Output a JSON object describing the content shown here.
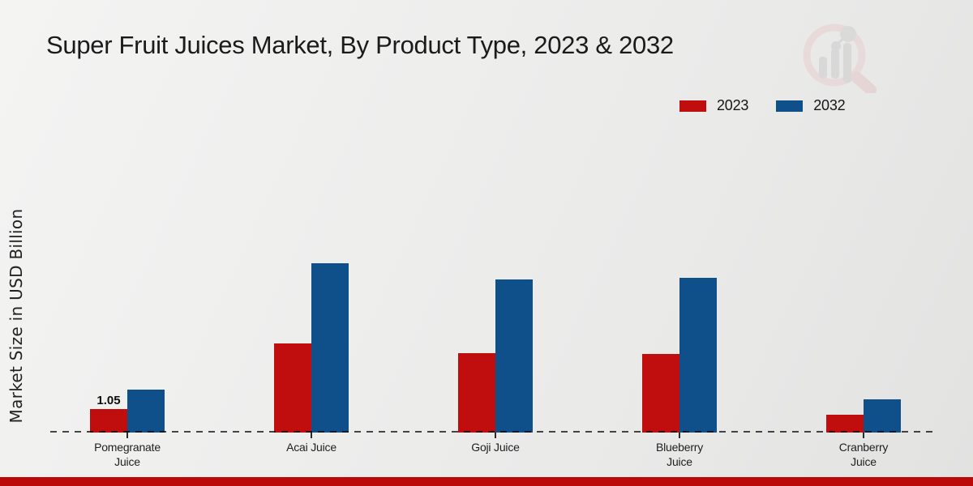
{
  "title": "Super Fruit Juices Market, By Product Type, 2023 & 2032",
  "ylabel": "Market Size in USD Billion",
  "colors": {
    "series_2023": "#c00d0d",
    "series_2032": "#10508a",
    "footer_stripe": "#bb0808",
    "text": "#1b1b1b"
  },
  "logo": {
    "name": "market-research-magnifier-chart-logo"
  },
  "chart_data": {
    "type": "bar",
    "title": "Super Fruit Juices Market, By Product Type, 2023 & 2032",
    "xlabel": "",
    "ylabel": "Market Size in USD Billion",
    "categories": [
      "Pomegranate Juice",
      "Acai Juice",
      "Goji Juice",
      "Blueberry Juice",
      "Cranberry Juice"
    ],
    "series": [
      {
        "name": "2023",
        "color": "#c00d0d",
        "values": [
          1.05,
          4.0,
          3.55,
          3.5,
          0.8
        ]
      },
      {
        "name": "2032",
        "color": "#10508a",
        "values": [
          1.92,
          7.58,
          6.84,
          6.93,
          1.5
        ]
      }
    ],
    "annotations": [
      {
        "category_index": 0,
        "series_index": 0,
        "text": "1.05"
      }
    ],
    "ylim": [
      0,
      8
    ],
    "grid": false,
    "y_axis_ticks_visible": false,
    "baseline_style": "dashed",
    "legend_position": "top-right"
  }
}
